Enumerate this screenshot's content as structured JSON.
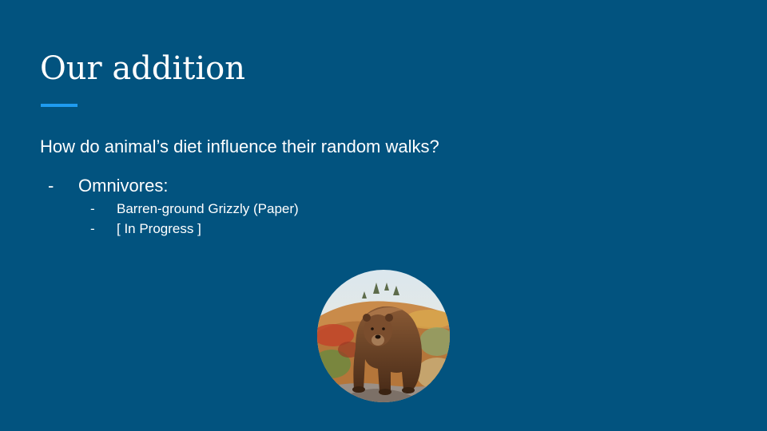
{
  "slide": {
    "title": "Our addition",
    "question": "How do animal’s diet influence their random walks?",
    "bullets": [
      {
        "marker": "-",
        "text": "Omnivores:",
        "children": [
          {
            "marker": "-",
            "text": "Barren-ground Grizzly (Paper)"
          },
          {
            "marker": "-",
            "text": "[ In Progress ]"
          }
        ]
      }
    ]
  },
  "colors": {
    "background": "#02537f",
    "accent": "#1f9bf0",
    "text": "#ffffff"
  },
  "image": {
    "icon": "grizzly-bear-photo"
  }
}
